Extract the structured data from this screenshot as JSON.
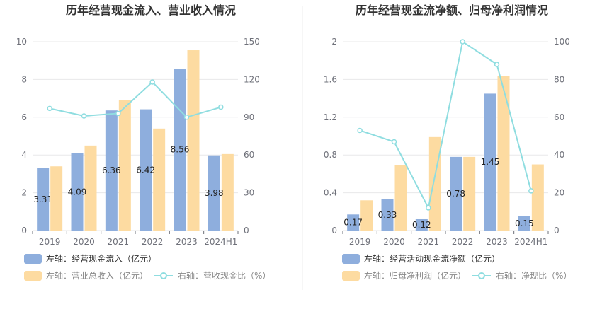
{
  "colors": {
    "bar_blue": "#8eaedd",
    "bar_orange": "#fddba1",
    "line_teal": "#8fdde0",
    "grid": "#e8e8ea",
    "axis_text": "#6e7079",
    "divider": "#eeeeee"
  },
  "chart_data": [
    {
      "type": "bar",
      "title": "历年经营现金流入、营业收入情况",
      "categories": [
        "2019",
        "2020",
        "2021",
        "2022",
        "2023",
        "2024H1"
      ],
      "left_axis": {
        "ylim": [
          0,
          10
        ],
        "ticks": [
          "0",
          "2",
          "4",
          "6",
          "8",
          "10"
        ]
      },
      "right_axis": {
        "ylim": [
          0,
          150
        ],
        "ticks": [
          "0",
          "30",
          "60",
          "90",
          "120",
          "150"
        ]
      },
      "series": [
        {
          "name": "左轴：经营现金流入（亿元）",
          "type": "bar",
          "axis": "left",
          "values": [
            3.31,
            4.09,
            6.36,
            6.42,
            8.56,
            3.98
          ],
          "labels": [
            "3.31",
            "4.09",
            "6.36",
            "6.42",
            "8.56",
            "3.98"
          ]
        },
        {
          "name": "左轴：营业总收入（亿元）",
          "type": "bar",
          "axis": "left",
          "values": [
            3.4,
            4.5,
            6.9,
            5.4,
            9.55,
            4.05
          ]
        },
        {
          "name": "右轴：营收现金比（%）",
          "type": "line",
          "axis": "right",
          "values": [
            97,
            91,
            93,
            118,
            90,
            98
          ]
        }
      ],
      "grid": true,
      "legend_position": "bottom-left"
    },
    {
      "type": "bar",
      "title": "历年经营现金流净额、归母净利润情况",
      "categories": [
        "2019",
        "2020",
        "2021",
        "2022",
        "2023",
        "2024H1"
      ],
      "left_axis": {
        "ylim": [
          0,
          2
        ],
        "ticks": [
          "0",
          "0.4",
          "0.8",
          "1.2",
          "1.6",
          "2"
        ]
      },
      "right_axis": {
        "ylim": [
          0,
          100
        ],
        "ticks": [
          "0",
          "20",
          "40",
          "60",
          "80",
          "100"
        ]
      },
      "series": [
        {
          "name": "左轴：经营活动现金流净额（亿元）",
          "type": "bar",
          "axis": "left",
          "values": [
            0.17,
            0.33,
            0.12,
            0.78,
            1.45,
            0.15
          ],
          "labels": [
            "0.17",
            "0.33",
            "0.12",
            "0.78",
            "1.45",
            "0.15"
          ]
        },
        {
          "name": "左轴：归母净利润（亿元）",
          "type": "bar",
          "axis": "left",
          "values": [
            0.32,
            0.69,
            0.99,
            0.78,
            1.64,
            0.7
          ]
        },
        {
          "name": "右轴：净现比（%）",
          "type": "line",
          "axis": "right",
          "values": [
            53,
            47,
            12,
            100,
            88,
            21
          ]
        }
      ],
      "grid": true,
      "legend_position": "bottom-left"
    }
  ]
}
